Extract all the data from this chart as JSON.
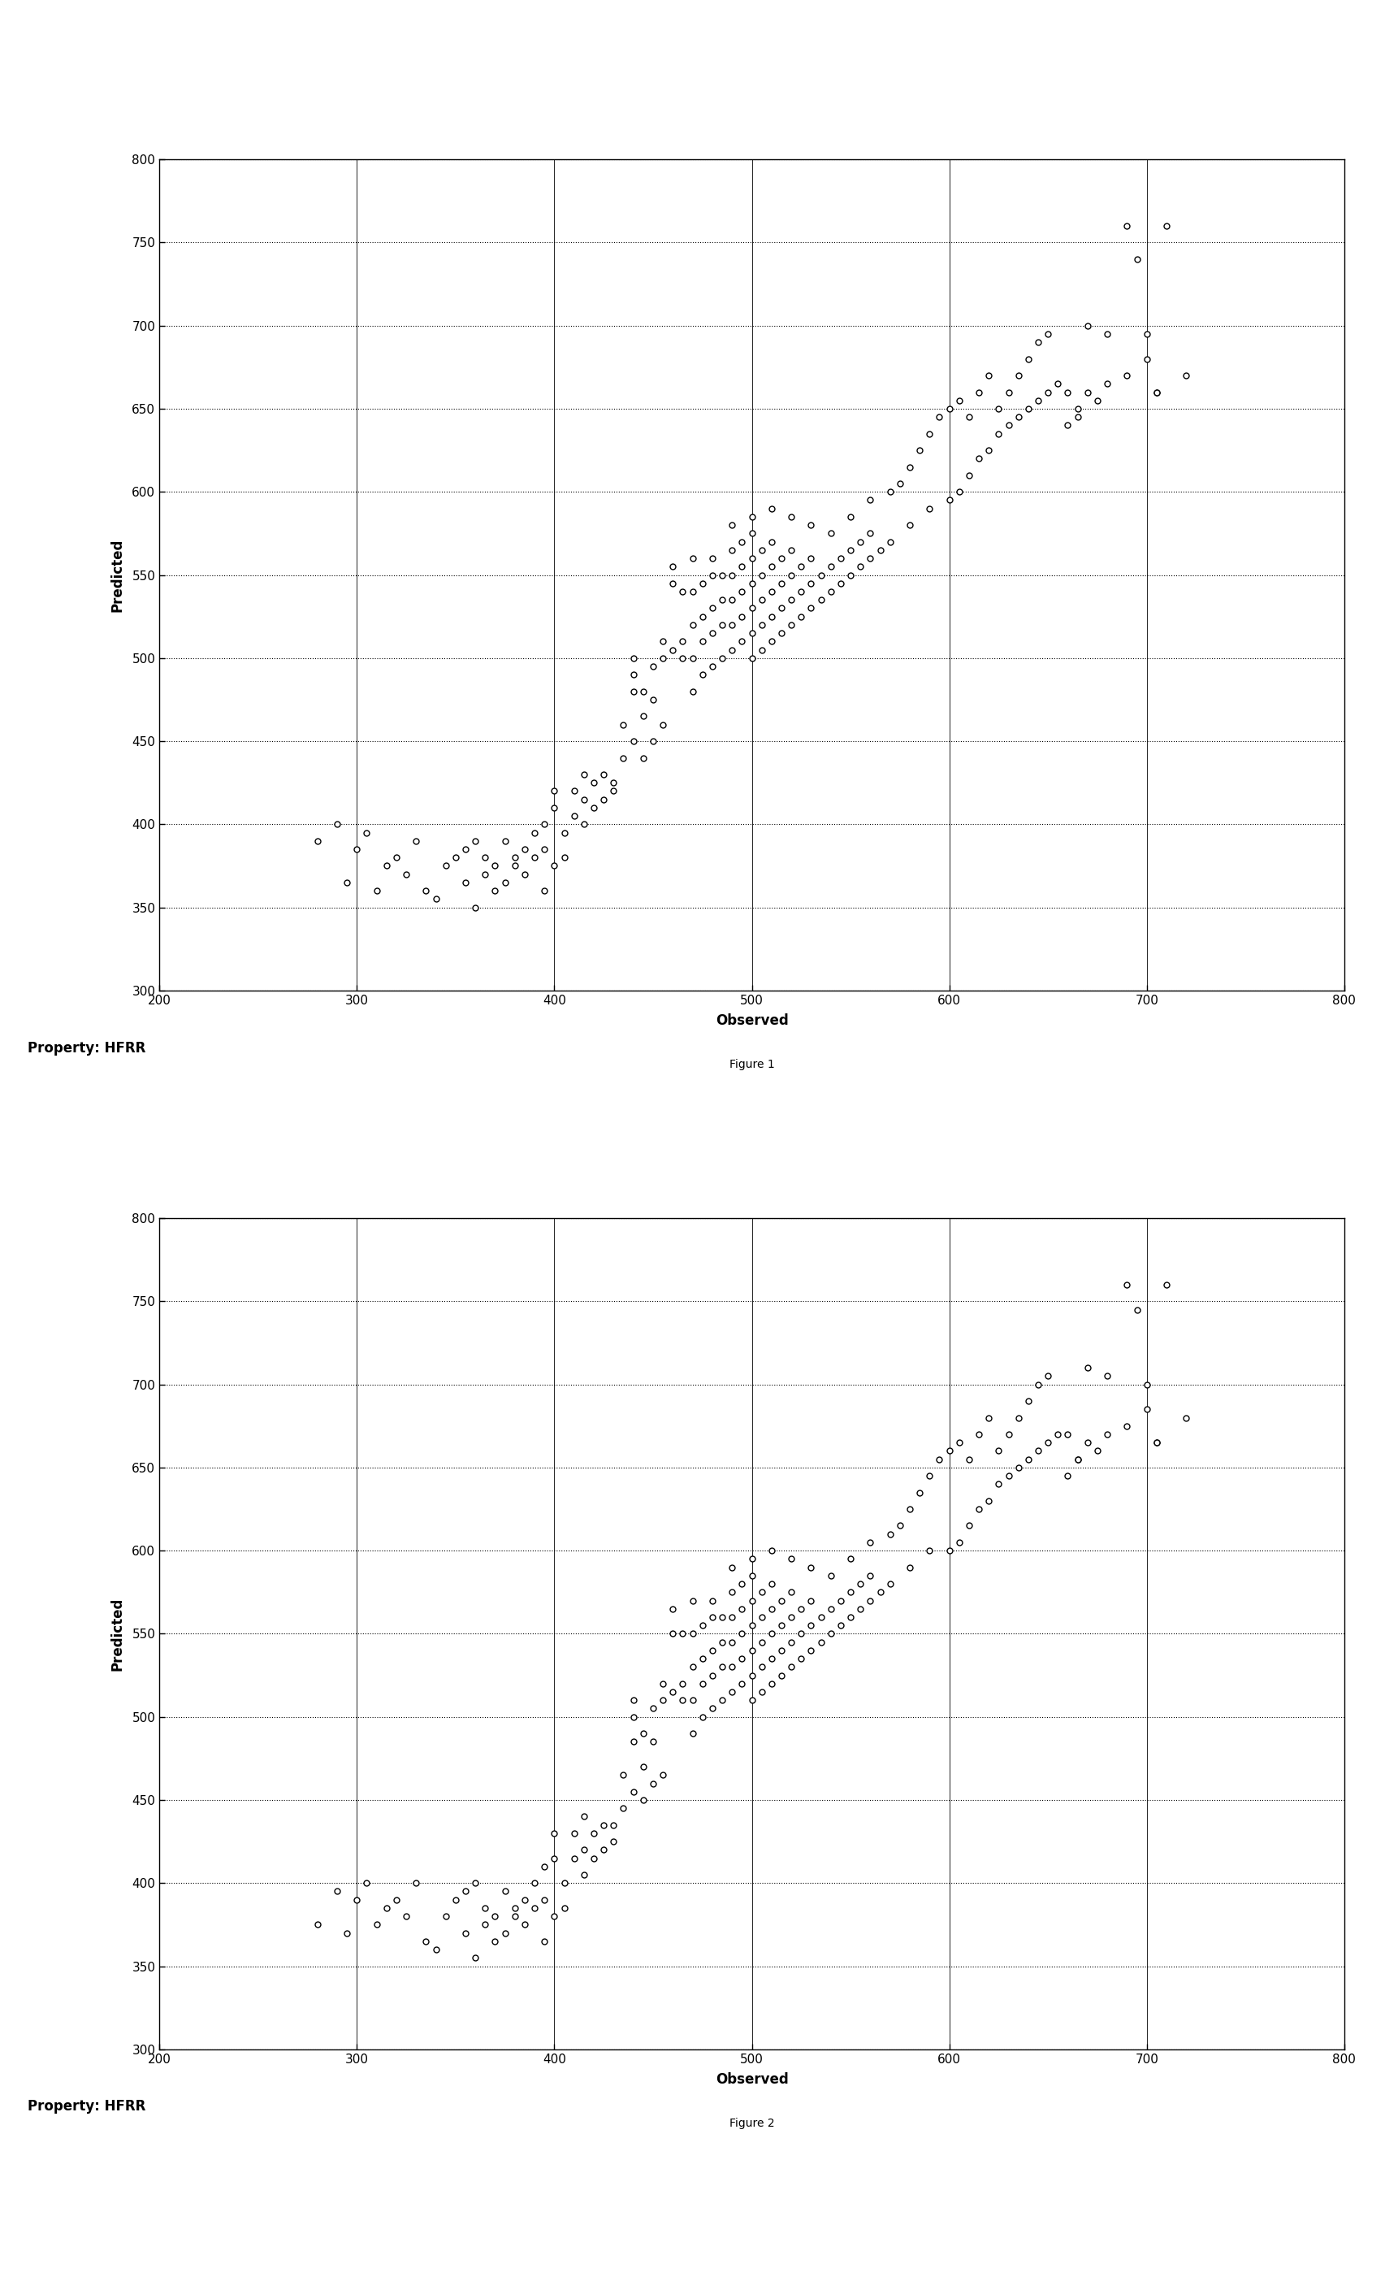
{
  "fig1_points": [
    [
      280,
      390
    ],
    [
      290,
      400
    ],
    [
      295,
      365
    ],
    [
      300,
      385
    ],
    [
      305,
      395
    ],
    [
      310,
      360
    ],
    [
      315,
      375
    ],
    [
      320,
      380
    ],
    [
      325,
      370
    ],
    [
      330,
      390
    ],
    [
      335,
      360
    ],
    [
      340,
      355
    ],
    [
      345,
      375
    ],
    [
      350,
      380
    ],
    [
      355,
      385
    ],
    [
      355,
      365
    ],
    [
      360,
      350
    ],
    [
      360,
      390
    ],
    [
      365,
      370
    ],
    [
      365,
      380
    ],
    [
      370,
      360
    ],
    [
      370,
      375
    ],
    [
      375,
      365
    ],
    [
      375,
      390
    ],
    [
      380,
      380
    ],
    [
      380,
      375
    ],
    [
      385,
      385
    ],
    [
      385,
      370
    ],
    [
      390,
      395
    ],
    [
      390,
      380
    ],
    [
      395,
      360
    ],
    [
      395,
      400
    ],
    [
      395,
      385
    ],
    [
      400,
      375
    ],
    [
      400,
      420
    ],
    [
      400,
      410
    ],
    [
      405,
      380
    ],
    [
      405,
      395
    ],
    [
      410,
      405
    ],
    [
      410,
      420
    ],
    [
      415,
      400
    ],
    [
      415,
      415
    ],
    [
      415,
      430
    ],
    [
      420,
      410
    ],
    [
      420,
      425
    ],
    [
      425,
      415
    ],
    [
      425,
      430
    ],
    [
      430,
      420
    ],
    [
      430,
      425
    ],
    [
      435,
      440
    ],
    [
      435,
      460
    ],
    [
      440,
      450
    ],
    [
      440,
      480
    ],
    [
      440,
      490
    ],
    [
      440,
      500
    ],
    [
      445,
      440
    ],
    [
      445,
      465
    ],
    [
      445,
      480
    ],
    [
      450,
      450
    ],
    [
      450,
      475
    ],
    [
      450,
      495
    ],
    [
      455,
      460
    ],
    [
      455,
      500
    ],
    [
      455,
      510
    ],
    [
      460,
      505
    ],
    [
      460,
      545
    ],
    [
      465,
      500
    ],
    [
      465,
      510
    ],
    [
      465,
      540
    ],
    [
      470,
      480
    ],
    [
      470,
      500
    ],
    [
      470,
      520
    ],
    [
      470,
      540
    ],
    [
      475,
      490
    ],
    [
      475,
      510
    ],
    [
      475,
      525
    ],
    [
      475,
      545
    ],
    [
      480,
      495
    ],
    [
      480,
      515
    ],
    [
      480,
      530
    ],
    [
      480,
      550
    ],
    [
      485,
      500
    ],
    [
      485,
      520
    ],
    [
      485,
      535
    ],
    [
      485,
      550
    ],
    [
      490,
      505
    ],
    [
      490,
      520
    ],
    [
      490,
      535
    ],
    [
      490,
      550
    ],
    [
      490,
      565
    ],
    [
      495,
      510
    ],
    [
      495,
      525
    ],
    [
      495,
      540
    ],
    [
      495,
      555
    ],
    [
      495,
      570
    ],
    [
      500,
      500
    ],
    [
      500,
      515
    ],
    [
      500,
      530
    ],
    [
      500,
      545
    ],
    [
      500,
      560
    ],
    [
      500,
      575
    ],
    [
      505,
      505
    ],
    [
      505,
      520
    ],
    [
      505,
      535
    ],
    [
      505,
      550
    ],
    [
      505,
      565
    ],
    [
      510,
      510
    ],
    [
      510,
      525
    ],
    [
      510,
      540
    ],
    [
      510,
      555
    ],
    [
      510,
      570
    ],
    [
      515,
      515
    ],
    [
      515,
      530
    ],
    [
      515,
      545
    ],
    [
      515,
      560
    ],
    [
      520,
      520
    ],
    [
      520,
      535
    ],
    [
      520,
      550
    ],
    [
      520,
      565
    ],
    [
      525,
      525
    ],
    [
      525,
      540
    ],
    [
      525,
      555
    ],
    [
      530,
      530
    ],
    [
      530,
      545
    ],
    [
      530,
      560
    ],
    [
      535,
      535
    ],
    [
      535,
      550
    ],
    [
      540,
      540
    ],
    [
      540,
      555
    ],
    [
      545,
      545
    ],
    [
      545,
      560
    ],
    [
      550,
      550
    ],
    [
      550,
      565
    ],
    [
      555,
      555
    ],
    [
      555,
      570
    ],
    [
      560,
      560
    ],
    [
      560,
      575
    ],
    [
      565,
      565
    ],
    [
      570,
      570
    ],
    [
      580,
      580
    ],
    [
      590,
      590
    ],
    [
      600,
      595
    ],
    [
      605,
      600
    ],
    [
      610,
      610
    ],
    [
      615,
      620
    ],
    [
      620,
      625
    ],
    [
      625,
      635
    ],
    [
      630,
      640
    ],
    [
      635,
      645
    ],
    [
      640,
      650
    ],
    [
      645,
      655
    ],
    [
      650,
      660
    ],
    [
      655,
      665
    ],
    [
      660,
      640
    ],
    [
      665,
      650
    ],
    [
      670,
      660
    ],
    [
      675,
      655
    ],
    [
      680,
      665
    ],
    [
      690,
      670
    ],
    [
      695,
      740
    ],
    [
      700,
      680
    ],
    [
      705,
      660
    ],
    [
      710,
      760
    ],
    [
      460,
      555
    ],
    [
      470,
      560
    ],
    [
      480,
      560
    ],
    [
      490,
      580
    ],
    [
      500,
      585
    ],
    [
      510,
      590
    ],
    [
      520,
      585
    ],
    [
      530,
      580
    ],
    [
      540,
      575
    ],
    [
      550,
      585
    ],
    [
      560,
      595
    ],
    [
      570,
      600
    ],
    [
      575,
      605
    ],
    [
      580,
      615
    ],
    [
      585,
      625
    ],
    [
      590,
      635
    ],
    [
      595,
      645
    ],
    [
      600,
      650
    ],
    [
      605,
      655
    ],
    [
      610,
      645
    ],
    [
      615,
      660
    ],
    [
      620,
      670
    ],
    [
      625,
      650
    ],
    [
      630,
      660
    ],
    [
      635,
      670
    ],
    [
      640,
      680
    ],
    [
      645,
      690
    ],
    [
      650,
      695
    ],
    [
      660,
      660
    ],
    [
      665,
      645
    ],
    [
      670,
      700
    ],
    [
      680,
      695
    ],
    [
      690,
      760
    ],
    [
      700,
      695
    ],
    [
      705,
      660
    ],
    [
      720,
      670
    ]
  ],
  "fig2_points": [
    [
      280,
      375
    ],
    [
      290,
      395
    ],
    [
      295,
      370
    ],
    [
      300,
      390
    ],
    [
      305,
      400
    ],
    [
      310,
      375
    ],
    [
      315,
      385
    ],
    [
      320,
      390
    ],
    [
      325,
      380
    ],
    [
      330,
      400
    ],
    [
      335,
      365
    ],
    [
      340,
      360
    ],
    [
      345,
      380
    ],
    [
      350,
      390
    ],
    [
      355,
      395
    ],
    [
      355,
      370
    ],
    [
      360,
      355
    ],
    [
      360,
      400
    ],
    [
      365,
      375
    ],
    [
      365,
      385
    ],
    [
      370,
      365
    ],
    [
      370,
      380
    ],
    [
      375,
      370
    ],
    [
      375,
      395
    ],
    [
      380,
      385
    ],
    [
      380,
      380
    ],
    [
      385,
      390
    ],
    [
      385,
      375
    ],
    [
      390,
      400
    ],
    [
      390,
      385
    ],
    [
      395,
      365
    ],
    [
      395,
      410
    ],
    [
      395,
      390
    ],
    [
      400,
      380
    ],
    [
      400,
      430
    ],
    [
      400,
      415
    ],
    [
      405,
      385
    ],
    [
      405,
      400
    ],
    [
      410,
      415
    ],
    [
      410,
      430
    ],
    [
      415,
      405
    ],
    [
      415,
      420
    ],
    [
      415,
      440
    ],
    [
      420,
      415
    ],
    [
      420,
      430
    ],
    [
      425,
      420
    ],
    [
      425,
      435
    ],
    [
      430,
      425
    ],
    [
      430,
      435
    ],
    [
      435,
      445
    ],
    [
      435,
      465
    ],
    [
      440,
      455
    ],
    [
      440,
      485
    ],
    [
      440,
      500
    ],
    [
      440,
      510
    ],
    [
      445,
      450
    ],
    [
      445,
      470
    ],
    [
      445,
      490
    ],
    [
      450,
      460
    ],
    [
      450,
      485
    ],
    [
      450,
      505
    ],
    [
      455,
      465
    ],
    [
      455,
      510
    ],
    [
      455,
      520
    ],
    [
      460,
      515
    ],
    [
      460,
      550
    ],
    [
      465,
      510
    ],
    [
      465,
      520
    ],
    [
      465,
      550
    ],
    [
      470,
      490
    ],
    [
      470,
      510
    ],
    [
      470,
      530
    ],
    [
      470,
      550
    ],
    [
      475,
      500
    ],
    [
      475,
      520
    ],
    [
      475,
      535
    ],
    [
      475,
      555
    ],
    [
      480,
      505
    ],
    [
      480,
      525
    ],
    [
      480,
      540
    ],
    [
      480,
      560
    ],
    [
      485,
      510
    ],
    [
      485,
      530
    ],
    [
      485,
      545
    ],
    [
      485,
      560
    ],
    [
      490,
      515
    ],
    [
      490,
      530
    ],
    [
      490,
      545
    ],
    [
      490,
      560
    ],
    [
      490,
      575
    ],
    [
      495,
      520
    ],
    [
      495,
      535
    ],
    [
      495,
      550
    ],
    [
      495,
      565
    ],
    [
      495,
      580
    ],
    [
      500,
      510
    ],
    [
      500,
      525
    ],
    [
      500,
      540
    ],
    [
      500,
      555
    ],
    [
      500,
      570
    ],
    [
      500,
      585
    ],
    [
      505,
      515
    ],
    [
      505,
      530
    ],
    [
      505,
      545
    ],
    [
      505,
      560
    ],
    [
      505,
      575
    ],
    [
      510,
      520
    ],
    [
      510,
      535
    ],
    [
      510,
      550
    ],
    [
      510,
      565
    ],
    [
      510,
      580
    ],
    [
      515,
      525
    ],
    [
      515,
      540
    ],
    [
      515,
      555
    ],
    [
      515,
      570
    ],
    [
      520,
      530
    ],
    [
      520,
      545
    ],
    [
      520,
      560
    ],
    [
      520,
      575
    ],
    [
      525,
      535
    ],
    [
      525,
      550
    ],
    [
      525,
      565
    ],
    [
      530,
      540
    ],
    [
      530,
      555
    ],
    [
      530,
      570
    ],
    [
      535,
      545
    ],
    [
      535,
      560
    ],
    [
      540,
      550
    ],
    [
      540,
      565
    ],
    [
      545,
      555
    ],
    [
      545,
      570
    ],
    [
      550,
      560
    ],
    [
      550,
      575
    ],
    [
      555,
      565
    ],
    [
      555,
      580
    ],
    [
      560,
      570
    ],
    [
      560,
      585
    ],
    [
      565,
      575
    ],
    [
      570,
      580
    ],
    [
      580,
      590
    ],
    [
      590,
      600
    ],
    [
      600,
      600
    ],
    [
      605,
      605
    ],
    [
      610,
      615
    ],
    [
      615,
      625
    ],
    [
      620,
      630
    ],
    [
      625,
      640
    ],
    [
      630,
      645
    ],
    [
      635,
      650
    ],
    [
      640,
      655
    ],
    [
      645,
      660
    ],
    [
      650,
      665
    ],
    [
      655,
      670
    ],
    [
      660,
      645
    ],
    [
      665,
      655
    ],
    [
      670,
      665
    ],
    [
      675,
      660
    ],
    [
      680,
      670
    ],
    [
      690,
      675
    ],
    [
      695,
      745
    ],
    [
      700,
      685
    ],
    [
      705,
      665
    ],
    [
      710,
      760
    ],
    [
      460,
      565
    ],
    [
      470,
      570
    ],
    [
      480,
      570
    ],
    [
      490,
      590
    ],
    [
      500,
      595
    ],
    [
      510,
      600
    ],
    [
      520,
      595
    ],
    [
      530,
      590
    ],
    [
      540,
      585
    ],
    [
      550,
      595
    ],
    [
      560,
      605
    ],
    [
      570,
      610
    ],
    [
      575,
      615
    ],
    [
      580,
      625
    ],
    [
      585,
      635
    ],
    [
      590,
      645
    ],
    [
      595,
      655
    ],
    [
      600,
      660
    ],
    [
      605,
      665
    ],
    [
      610,
      655
    ],
    [
      615,
      670
    ],
    [
      620,
      680
    ],
    [
      625,
      660
    ],
    [
      630,
      670
    ],
    [
      635,
      680
    ],
    [
      640,
      690
    ],
    [
      645,
      700
    ],
    [
      650,
      705
    ],
    [
      660,
      670
    ],
    [
      665,
      655
    ],
    [
      670,
      710
    ],
    [
      680,
      705
    ],
    [
      690,
      760
    ],
    [
      700,
      700
    ],
    [
      705,
      665
    ],
    [
      720,
      680
    ]
  ],
  "fig1_caption": "Figure 1",
  "fig2_caption": "Figure 2",
  "xlabel": "Observed",
  "ylabel": "Predicted",
  "property_label": "Property: HFRR",
  "xlim": [
    200,
    800
  ],
  "ylim": [
    300,
    800
  ],
  "xticks": [
    200,
    300,
    400,
    500,
    600,
    700,
    800
  ],
  "yticks": [
    300,
    350,
    400,
    450,
    500,
    550,
    600,
    650,
    700,
    750,
    800
  ],
  "marker_size": 5,
  "marker_facecolor": "white",
  "marker_edgecolor": "black",
  "marker_linewidth": 1.0,
  "background_color": "#ffffff",
  "caption_fontsize": 10,
  "label_fontsize": 12,
  "tick_fontsize": 11,
  "property_fontsize": 12
}
